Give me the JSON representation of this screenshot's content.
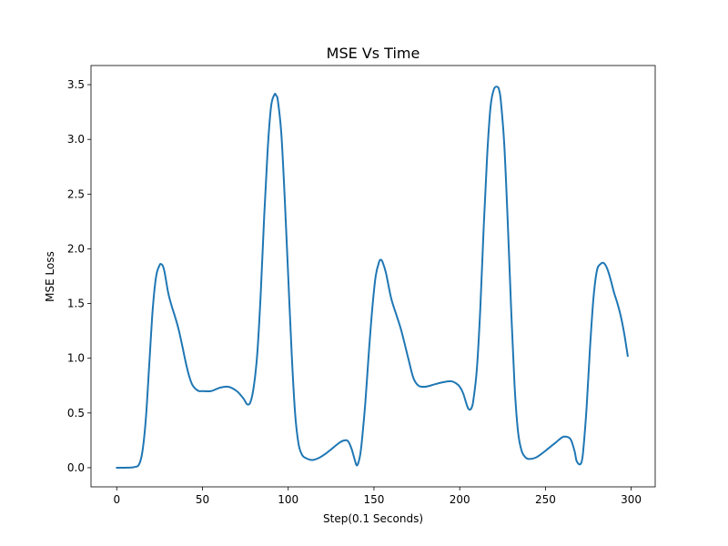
{
  "chart_data": {
    "type": "line",
    "title": "MSE Vs Time",
    "xlabel": "Step(0.1 Seconds)",
    "ylabel": "MSE Loss",
    "xlim": [
      -15,
      314
    ],
    "ylim": [
      -0.175,
      3.675
    ],
    "xticks": [
      0,
      50,
      100,
      150,
      200,
      250,
      300
    ],
    "yticks": [
      0.0,
      0.5,
      1.0,
      1.5,
      2.0,
      2.5,
      3.0,
      3.5
    ],
    "xtick_labels": [
      "0",
      "50",
      "100",
      "150",
      "200",
      "250",
      "300"
    ],
    "ytick_labels": [
      "0.0",
      "0.5",
      "1.0",
      "1.5",
      "2.0",
      "2.5",
      "3.0",
      "3.5"
    ],
    "grid": false,
    "legend": false,
    "line_color": "#1f77b4",
    "series": [
      {
        "x": [
          0,
          5,
          10,
          13,
          15,
          17,
          19,
          21,
          23,
          25,
          26,
          27,
          28,
          30,
          32,
          34,
          36,
          38,
          40,
          42,
          44,
          46,
          48,
          50,
          55,
          60,
          65,
          70,
          74,
          76,
          78,
          80,
          82,
          84,
          86,
          88,
          90,
          92,
          93,
          94,
          96,
          98,
          100,
          102,
          104,
          106,
          108,
          110,
          114,
          118,
          122,
          126,
          130,
          133,
          135,
          137,
          139,
          140,
          141,
          142,
          143,
          145,
          147,
          149,
          151,
          153,
          154,
          155,
          157,
          160,
          163,
          166,
          170,
          173,
          176,
          180,
          185,
          190,
          195,
          198,
          200,
          202,
          204,
          205,
          206,
          207,
          208,
          210,
          212,
          214,
          216,
          218,
          220,
          222,
          223,
          224,
          226,
          228,
          230,
          232,
          234,
          236,
          238,
          240,
          244,
          248,
          252,
          256,
          260,
          263,
          265,
          267,
          268,
          269,
          270,
          271,
          272,
          274,
          276,
          278,
          280,
          282,
          284,
          286,
          288,
          290,
          292,
          294,
          296,
          298
        ],
        "y": [
          0.0,
          0.0,
          0.005,
          0.03,
          0.15,
          0.45,
          0.95,
          1.45,
          1.75,
          1.85,
          1.86,
          1.84,
          1.78,
          1.6,
          1.48,
          1.38,
          1.27,
          1.13,
          0.98,
          0.85,
          0.76,
          0.72,
          0.7,
          0.7,
          0.7,
          0.73,
          0.74,
          0.7,
          0.63,
          0.58,
          0.6,
          0.75,
          1.05,
          1.6,
          2.3,
          2.9,
          3.3,
          3.41,
          3.4,
          3.35,
          3.05,
          2.45,
          1.75,
          1.05,
          0.5,
          0.22,
          0.12,
          0.09,
          0.07,
          0.09,
          0.13,
          0.18,
          0.23,
          0.25,
          0.24,
          0.17,
          0.06,
          0.02,
          0.05,
          0.12,
          0.25,
          0.6,
          1.05,
          1.45,
          1.75,
          1.88,
          1.9,
          1.88,
          1.78,
          1.55,
          1.4,
          1.25,
          1.0,
          0.82,
          0.75,
          0.74,
          0.76,
          0.78,
          0.79,
          0.77,
          0.74,
          0.68,
          0.58,
          0.54,
          0.53,
          0.55,
          0.62,
          0.9,
          1.45,
          2.2,
          2.85,
          3.3,
          3.46,
          3.48,
          3.45,
          3.35,
          2.95,
          2.25,
          1.45,
          0.75,
          0.33,
          0.16,
          0.1,
          0.08,
          0.09,
          0.13,
          0.18,
          0.23,
          0.28,
          0.28,
          0.25,
          0.15,
          0.07,
          0.04,
          0.03,
          0.05,
          0.15,
          0.55,
          1.1,
          1.55,
          1.8,
          1.86,
          1.87,
          1.82,
          1.72,
          1.6,
          1.5,
          1.38,
          1.22,
          1.02
        ]
      }
    ]
  }
}
